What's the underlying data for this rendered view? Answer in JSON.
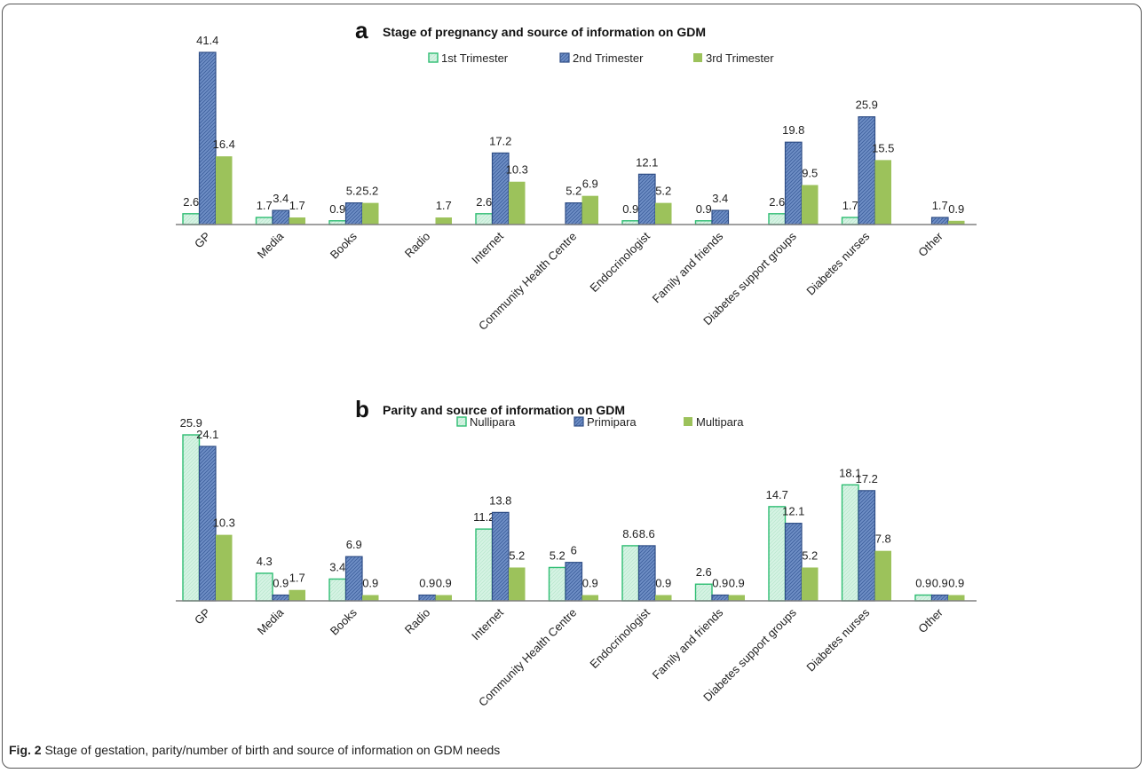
{
  "caption": {
    "label": "Fig. 2",
    "text": "Stage of gestation, parity/number of birth and source of information on GDM needs"
  },
  "colors": {
    "series1_fill": "#d6f3e4",
    "series1_stroke": "#2ebd72",
    "series2_fill": "#6f8fc6",
    "series2_stroke": "#2f4e86",
    "series3_fill": "#9cc25b",
    "axis": "#808080"
  },
  "chart_data": [
    {
      "type": "bar",
      "panel": "a",
      "title": "Stage of pregnancy and source of information on GDM",
      "legend_position": "top-center",
      "categories": [
        "GP",
        "Media",
        "Books",
        "Radio",
        "Internet",
        "Community Health Centre",
        "Endocrinologist",
        "Family and friends",
        "Diabetes support groups",
        "Diabetes nurses",
        "Other"
      ],
      "series": [
        {
          "name": "1st Trimester",
          "values": [
            2.6,
            1.7,
            0.9,
            null,
            2.6,
            null,
            0.9,
            0.9,
            2.6,
            1.7,
            null
          ]
        },
        {
          "name": "2nd Trimester",
          "values": [
            41.4,
            3.4,
            5.2,
            null,
            17.2,
            5.2,
            12.1,
            3.4,
            19.8,
            25.9,
            1.7
          ]
        },
        {
          "name": "3rd Trimester",
          "values": [
            16.4,
            1.7,
            5.2,
            1.7,
            10.3,
            6.9,
            5.2,
            null,
            9.5,
            15.5,
            0.9
          ]
        }
      ],
      "ylim": [
        0,
        41.4
      ],
      "grid": false
    },
    {
      "type": "bar",
      "panel": "b",
      "title": "Parity and source of information on GDM",
      "legend_position": "top-center",
      "categories": [
        "GP",
        "Media",
        "Books",
        "Radio",
        "Internet",
        "Community Health Centre",
        "Endocrinologist",
        "Family and friends",
        "Diabetes support groups",
        "Diabetes nurses",
        "Other"
      ],
      "series": [
        {
          "name": "Nullipara",
          "values": [
            25.9,
            4.3,
            3.4,
            null,
            11.2,
            5.2,
            8.6,
            2.6,
            14.7,
            18.1,
            0.9
          ]
        },
        {
          "name": "Primipara",
          "values": [
            24.1,
            0.9,
            6.9,
            0.9,
            13.8,
            6,
            8.6,
            0.9,
            12.1,
            17.2,
            0.9
          ]
        },
        {
          "name": "Multipara",
          "values": [
            10.3,
            1.7,
            0.9,
            0.9,
            5.2,
            0.9,
            0.9,
            0.9,
            5.2,
            7.8,
            0.9
          ]
        }
      ],
      "ylim": [
        0,
        25.9
      ],
      "grid": false
    }
  ]
}
